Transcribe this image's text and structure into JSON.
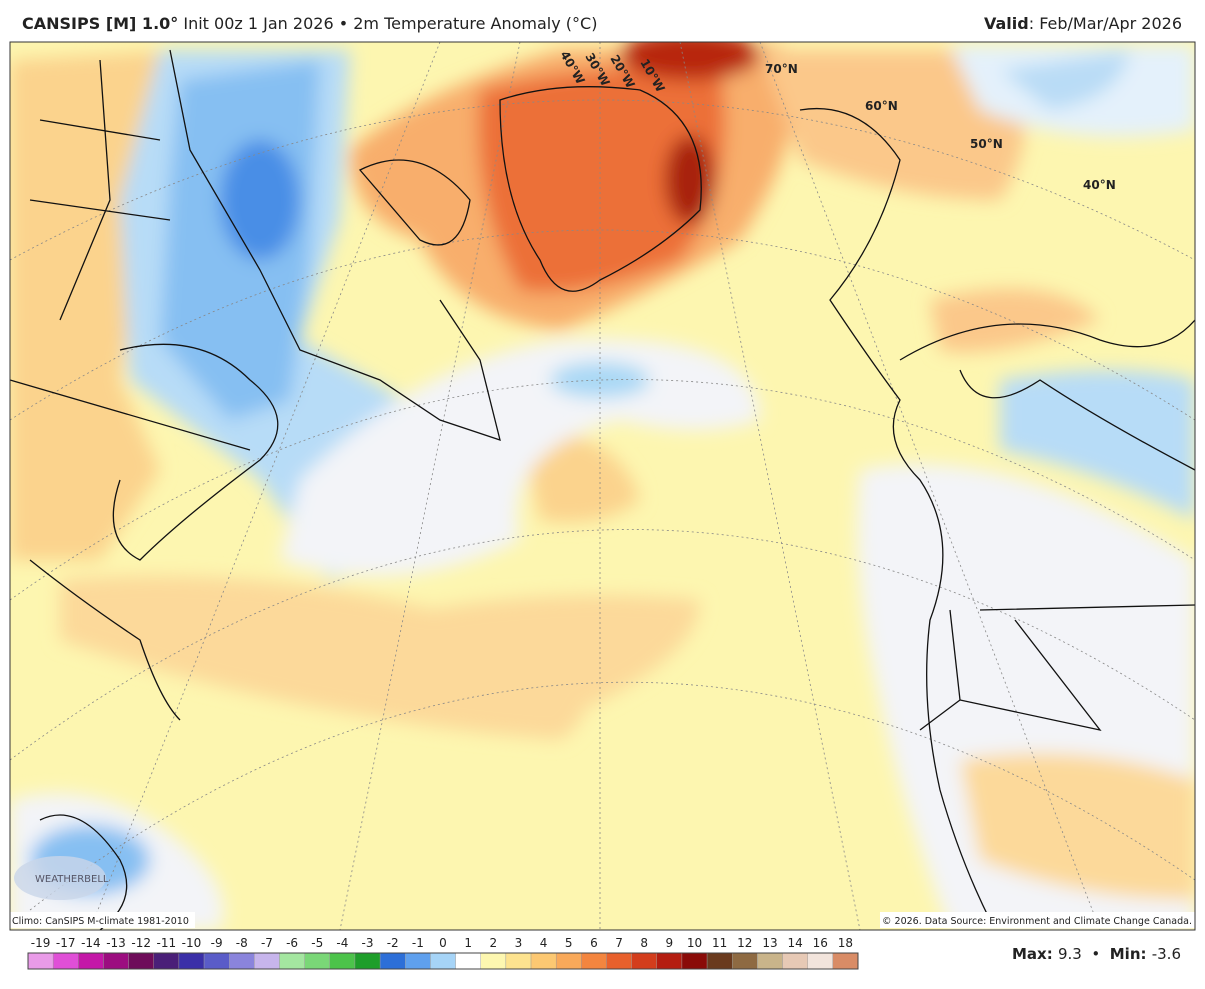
{
  "header": {
    "model": "CANSIPS [M] 1.0°",
    "description": "Init 00z 1 Jan 2026 • 2m Temperature Anomaly (°C)",
    "valid_label": "Valid",
    "valid_value": ": Feb/Mar/Apr 2026"
  },
  "map": {
    "labels": [
      "70°N",
      "60°N",
      "50°N",
      "40°N",
      "10°W",
      "20°W",
      "30°W",
      "40°W"
    ],
    "climo": "Climo: CanSIPS M-climate 1981-2010",
    "copyright": "© 2026. Data Source: Environment and Climate Change Canada.",
    "logo": "WEATHERBELL"
  },
  "colorbar": {
    "ticks": [
      -19,
      -17,
      -14,
      -13,
      -12,
      -11,
      -10,
      -9,
      -8,
      -7,
      -6,
      -5,
      -4,
      -3,
      -2,
      -1,
      0,
      1,
      2,
      3,
      4,
      5,
      6,
      7,
      8,
      9,
      10,
      11,
      12,
      13,
      14,
      16,
      18
    ],
    "colors": [
      "#e99be8",
      "#e04fd7",
      "#c418a8",
      "#9c0d80",
      "#6e0c5a",
      "#4a1f78",
      "#3a2fa8",
      "#5a5cc8",
      "#8a84dc",
      "#c7b5ec",
      "#a4e6a0",
      "#7ad777",
      "#4cc34a",
      "#1e9e2a",
      "#2d6fd8",
      "#5fa0ee",
      "#a6d4f7",
      "#ffffff",
      "#fdf7b0",
      "#fde38f",
      "#fcc872",
      "#f9a95a",
      "#f3853f",
      "#e8602c",
      "#d33d1c",
      "#b41d10",
      "#8a0b08",
      "#6a3a1e",
      "#8e6a42",
      "#c9b48a",
      "#e7c9b5",
      "#f2e4dc",
      "#d98c66"
    ],
    "max_label": "Max",
    "max": 9.3,
    "separator": "•",
    "min_label": "Min",
    "min": -3.6
  }
}
